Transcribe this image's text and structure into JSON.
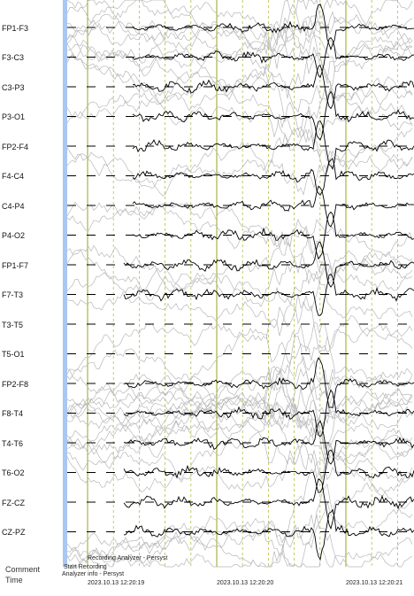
{
  "montage": {
    "channels": [
      "FP1-F3",
      "F3-C3",
      "C3-P3",
      "P3-O1",
      "FP2-F4",
      "F4-C4",
      "C4-P4",
      "P4-O2",
      "FP1-F7",
      "F7-T3",
      "T3-T5",
      "T5-O1",
      "FP2-F8",
      "F8-T4",
      "T4-T6",
      "T6-O2",
      "FZ-CZ",
      "CZ-PZ"
    ]
  },
  "footer": {
    "comment_label": "Comment",
    "time_label": "Time"
  },
  "annotations": {
    "recording_analyzer": "Recording Analyzer - Persyst",
    "start_recording": "Start Recording",
    "analyzer_info": "Analyzer info - Persyst"
  },
  "time_ticks": [
    "2023.10.13 12:20:19",
    "2023.10.13 12:20:20",
    "2023.10.13 12:20:21"
  ],
  "colors": {
    "trace": "#000000",
    "background_trace": "#b8b8b8",
    "second_marker": "#9aa31b",
    "half_second_marker": "#b7bd3a",
    "baseline": "#000000",
    "left_bar": "#a9c7f2"
  }
}
